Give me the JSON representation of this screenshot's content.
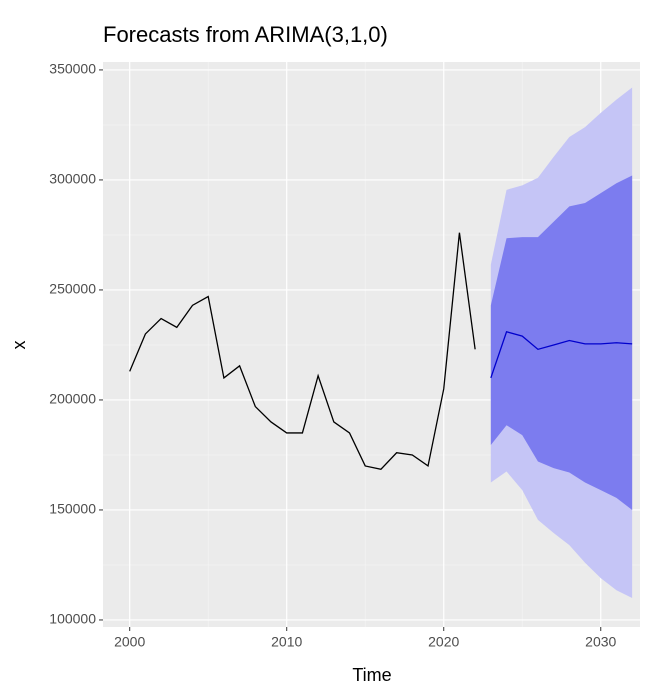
{
  "chart_data": {
    "type": "line",
    "title": "Forecasts from ARIMA(3,1,0)",
    "x_label": "Time",
    "y_label": "x",
    "xlim": [
      1998.3,
      2032.5
    ],
    "ylim": [
      96800,
      353600
    ],
    "xticks": [
      2000,
      2010,
      2020,
      2030
    ],
    "yticks": [
      100000,
      150000,
      200000,
      250000,
      300000,
      350000
    ],
    "grid": true,
    "minor_grid": true,
    "background": "#ebebeb",
    "bands": [
      {
        "color": "#c5c5f6",
        "x": [
          2023,
          2024,
          2025,
          2026,
          2027,
          2028,
          2029,
          2030,
          2031,
          2032
        ],
        "lower": [
          162500,
          167500,
          159000,
          145500,
          139500,
          134000,
          126000,
          119000,
          113500,
          110000
        ],
        "upper": [
          261500,
          295500,
          297500,
          301000,
          310500,
          319500,
          324000,
          330500,
          336500,
          342000
        ]
      },
      {
        "color": "#7c7cef",
        "x": [
          2023,
          2024,
          2025,
          2026,
          2027,
          2028,
          2029,
          2030,
          2031,
          2032
        ],
        "lower": [
          179500,
          188500,
          184000,
          172000,
          169000,
          167000,
          162500,
          159000,
          155500,
          150000
        ],
        "upper": [
          243000,
          273500,
          274000,
          274000,
          281000,
          288000,
          289500,
          294000,
          298500,
          302000
        ]
      }
    ],
    "series": [
      {
        "color": "#000000",
        "x": [
          2000,
          2001,
          2002,
          2003,
          2004,
          2005,
          2006,
          2007,
          2008,
          2009,
          2010,
          2011,
          2012,
          2013,
          2014,
          2015,
          2016,
          2017,
          2018,
          2019,
          2020,
          2021,
          2022
        ],
        "values": [
          213000,
          230000,
          237000,
          233000,
          243000,
          247000,
          210000,
          215500,
          197000,
          190000,
          185000,
          185000,
          211000,
          190000,
          185000,
          170000,
          168500,
          176000,
          175000,
          170000,
          205000,
          276000,
          223000
        ]
      },
      {
        "color": "#0000cc",
        "x": [
          2023,
          2024,
          2025,
          2026,
          2027,
          2028,
          2029,
          2030,
          2031,
          2032
        ],
        "values": [
          210000,
          231000,
          229000,
          223000,
          225000,
          227000,
          225500,
          225500,
          226000,
          225500
        ]
      }
    ]
  }
}
